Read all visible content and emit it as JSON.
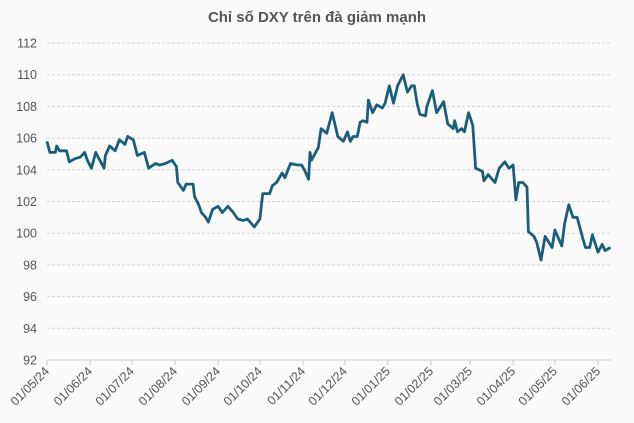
{
  "chart_data": {
    "type": "line",
    "title": "Chỉ số DXY trên đà giảm mạnh",
    "xlabel": "",
    "ylabel": "",
    "ylim": [
      92,
      112
    ],
    "xlim": [
      "2024-05-01",
      "2025-06-11"
    ],
    "y_ticks": [
      "92",
      "94",
      "96",
      "98",
      "100",
      "102",
      "104",
      "106",
      "108",
      "110",
      "112"
    ],
    "x_ticks": [
      {
        "date": "2024-05-01",
        "label": "01/05/24"
      },
      {
        "date": "2024-06-01",
        "label": "01/06/24"
      },
      {
        "date": "2024-07-01",
        "label": "01/07/24"
      },
      {
        "date": "2024-08-01",
        "label": "01/08/24"
      },
      {
        "date": "2024-09-01",
        "label": "01/09/24"
      },
      {
        "date": "2024-10-01",
        "label": "01/10/24"
      },
      {
        "date": "2024-11-01",
        "label": "01/11/24"
      },
      {
        "date": "2024-12-01",
        "label": "01/12/24"
      },
      {
        "date": "2025-01-01",
        "label": "01/01/25"
      },
      {
        "date": "2025-02-01",
        "label": "01/02/25"
      },
      {
        "date": "2025-03-01",
        "label": "01/03/25"
      },
      {
        "date": "2025-04-01",
        "label": "01/04/25"
      },
      {
        "date": "2025-05-01",
        "label": "01/05/25"
      },
      {
        "date": "2025-06-01",
        "label": "01/06/25"
      }
    ],
    "grid": true,
    "line_color": "#1b5e7b",
    "series": [
      {
        "x": [
          "2024-05-01",
          "2024-05-03",
          "2024-05-07",
          "2024-05-08",
          "2024-05-10",
          "2024-05-15",
          "2024-05-17",
          "2024-05-21",
          "2024-05-25",
          "2024-05-28",
          "2024-05-30",
          "2024-06-02",
          "2024-06-05",
          "2024-06-08",
          "2024-06-11",
          "2024-06-12",
          "2024-06-15",
          "2024-06-19",
          "2024-06-22",
          "2024-06-26",
          "2024-06-28",
          "2024-07-02",
          "2024-07-05",
          "2024-07-10",
          "2024-07-13",
          "2024-07-18",
          "2024-07-21",
          "2024-07-25",
          "2024-07-30",
          "2024-08-02",
          "2024-08-03",
          "2024-08-07",
          "2024-08-09",
          "2024-08-14",
          "2024-08-15",
          "2024-08-18",
          "2024-08-20",
          "2024-08-23",
          "2024-08-25",
          "2024-08-28",
          "2024-09-01",
          "2024-09-04",
          "2024-09-08",
          "2024-09-12",
          "2024-09-15",
          "2024-09-19",
          "2024-09-22",
          "2024-09-25",
          "2024-09-27",
          "2024-10-01",
          "2024-10-03",
          "2024-10-08",
          "2024-10-10",
          "2024-10-13",
          "2024-10-17",
          "2024-10-19",
          "2024-10-23",
          "2024-10-28",
          "2024-10-31",
          "2024-11-02",
          "2024-11-05",
          "2024-11-06",
          "2024-11-07",
          "2024-11-12",
          "2024-11-14",
          "2024-11-18",
          "2024-11-22",
          "2024-11-26",
          "2024-11-30",
          "2024-12-03",
          "2024-12-05",
          "2024-12-07",
          "2024-12-10",
          "2024-12-12",
          "2024-12-14",
          "2024-12-17",
          "2024-12-18",
          "2024-12-21",
          "2024-12-24",
          "2024-12-28",
          "2024-12-30",
          "2025-01-02",
          "2025-01-05",
          "2025-01-08",
          "2025-01-12",
          "2025-01-15",
          "2025-01-18",
          "2025-01-20",
          "2025-01-22",
          "2025-01-24",
          "2025-01-28",
          "2025-01-29",
          "2025-02-02",
          "2025-02-05",
          "2025-02-10",
          "2025-02-13",
          "2025-02-17",
          "2025-02-18",
          "2025-02-20",
          "2025-02-23",
          "2025-02-25",
          "2025-02-28",
          "2025-03-03",
          "2025-03-05",
          "2025-03-10",
          "2025-03-11",
          "2025-03-14",
          "2025-03-19",
          "2025-03-22",
          "2025-03-26",
          "2025-03-29",
          "2025-04-01",
          "2025-04-03",
          "2025-04-05",
          "2025-04-08",
          "2025-04-11",
          "2025-04-12",
          "2025-04-16",
          "2025-04-18",
          "2025-04-21",
          "2025-04-24",
          "2025-04-29",
          "2025-05-01",
          "2025-05-06",
          "2025-05-08",
          "2025-05-11",
          "2025-05-14",
          "2025-05-17",
          "2025-05-21",
          "2025-05-23",
          "2025-05-26",
          "2025-05-28",
          "2025-06-01",
          "2025-06-04",
          "2025-06-06",
          "2025-06-10"
        ],
        "values": [
          105.8,
          105.1,
          105.1,
          105.5,
          105.2,
          105.2,
          104.5,
          104.7,
          104.8,
          105.1,
          104.6,
          104.1,
          105.1,
          104.6,
          104.1,
          104.9,
          105.5,
          105.2,
          105.9,
          105.6,
          106.1,
          105.9,
          104.9,
          105.1,
          104.1,
          104.4,
          104.3,
          104.4,
          104.6,
          104.2,
          103.2,
          102.7,
          103.1,
          103.1,
          102.3,
          101.8,
          101.3,
          101.0,
          100.7,
          101.5,
          101.7,
          101.3,
          101.7,
          101.3,
          100.9,
          100.8,
          100.9,
          100.6,
          100.4,
          100.9,
          102.5,
          102.5,
          103.0,
          103.2,
          103.8,
          103.5,
          104.4,
          104.3,
          104.3,
          104.0,
          103.4,
          105.1,
          104.6,
          105.4,
          106.6,
          106.3,
          107.6,
          106.1,
          105.8,
          106.4,
          105.8,
          106.1,
          106.1,
          107.0,
          107.1,
          107.0,
          108.4,
          107.6,
          108.1,
          107.9,
          108.2,
          109.3,
          108.2,
          109.3,
          110.0,
          108.9,
          109.3,
          109.3,
          108.2,
          107.5,
          107.4,
          108.0,
          109.0,
          107.6,
          108.3,
          106.9,
          106.6,
          107.1,
          106.4,
          106.6,
          106.4,
          107.6,
          106.8,
          104.1,
          103.9,
          103.3,
          103.7,
          103.2,
          104.1,
          104.5,
          104.1,
          104.3,
          102.1,
          103.2,
          103.2,
          102.9,
          100.1,
          99.8,
          99.4,
          98.3,
          99.8,
          99.1,
          100.2,
          99.2,
          100.6,
          101.8,
          101.0,
          101.0,
          99.7,
          99.1,
          99.1,
          99.9,
          98.8,
          99.3,
          98.9,
          99.1
        ]
      }
    ]
  }
}
